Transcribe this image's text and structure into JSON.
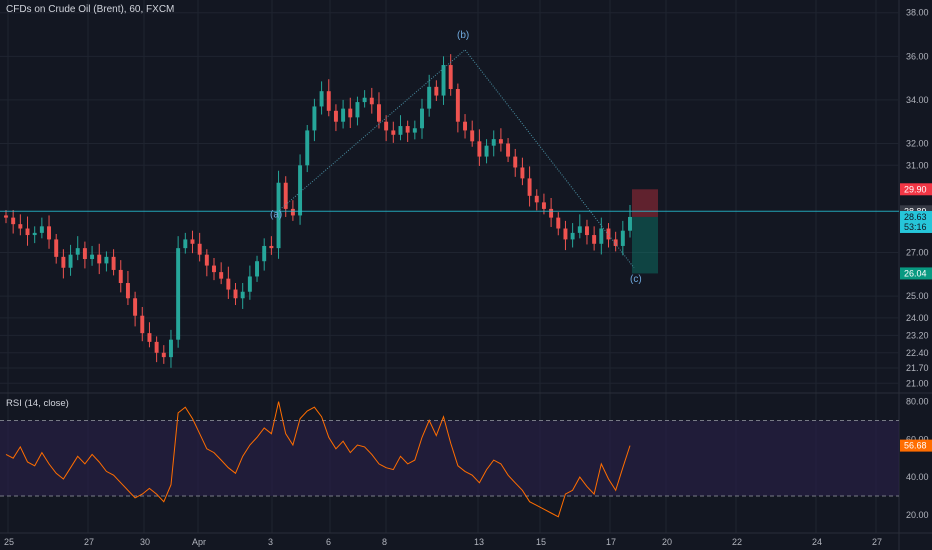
{
  "header": {
    "title": "CFDs on Crude Oil (Brent), 60, FXCM"
  },
  "rsi_header": {
    "title": "RSI (14, close)"
  },
  "colors": {
    "background": "#131722",
    "up": "#26a69a",
    "down": "#ef5350",
    "grid": "#1f2430",
    "wave": "#4a90a4",
    "rsi_line": "#ff6d00",
    "rsi_band": "#2a1f4a",
    "price_tag": "#26c6da",
    "stop_tag": "#f23645",
    "target_tag": "#089981"
  },
  "chart_data": [
    {
      "type": "candlestick",
      "title": "CFDs on Crude Oil (Brent), 60, FXCM",
      "x_ticks": [
        "25",
        "27",
        "30",
        "Apr",
        "3",
        "6",
        "8",
        "13",
        "15",
        "17",
        "20",
        "22",
        "24",
        "27"
      ],
      "y_ticks": [
        "38.00",
        "36.00",
        "34.00",
        "32.00",
        "31.00",
        "29.90",
        "28.89",
        "28.63",
        "27.00",
        "26.04",
        "25.00",
        "24.00",
        "23.20",
        "22.40",
        "21.70",
        "21.00"
      ],
      "ylim": [
        20.6,
        38.4
      ],
      "current_price": 28.63,
      "countdown": "53:16",
      "horizontal_line": 28.89,
      "stop_price": 29.9,
      "target_price": 26.04,
      "wave_points": [
        {
          "label": "(a)",
          "x": "3",
          "y": 28.89
        },
        {
          "label": "(b)",
          "x": "12",
          "y": 36.3
        },
        {
          "label": "(c)",
          "x": "17",
          "y": 26.3
        }
      ],
      "series": [
        {
          "values": [
            28.6,
            28.3,
            28.1,
            27.8,
            27.9,
            28.2,
            27.6,
            26.8,
            26.3,
            26.9,
            27.2,
            26.7,
            26.9,
            26.5,
            26.8,
            26.2,
            25.6,
            24.9,
            24.1,
            23.3,
            22.9,
            22.4,
            22.2,
            23.0,
            27.2,
            27.6,
            27.4,
            26.9,
            26.4,
            26.1,
            25.8,
            25.3,
            24.9,
            25.2,
            25.9,
            26.6,
            27.3,
            27.2,
            30.2,
            29.0,
            28.7,
            31.0,
            32.6,
            33.7,
            34.4,
            33.5,
            33.0,
            33.6,
            33.2,
            33.9,
            34.1,
            33.8,
            33.0,
            32.6,
            32.4,
            32.8,
            32.5,
            32.7,
            33.6,
            34.6,
            34.2,
            35.6,
            34.5,
            33.0,
            32.6,
            32.1,
            31.4,
            31.9,
            32.2,
            32.0,
            31.4,
            30.9,
            30.4,
            29.6,
            29.3,
            29.0,
            28.6,
            28.1,
            27.6,
            27.9,
            28.2,
            27.8,
            27.4,
            28.1,
            27.6,
            27.3,
            28.0,
            28.63
          ]
        }
      ]
    },
    {
      "type": "line",
      "title": "RSI (14, close)",
      "y_ticks": [
        "80.00",
        "60.00",
        "56.68",
        "40.00",
        "20.00"
      ],
      "ylim": [
        12,
        84
      ],
      "bands": [
        30,
        70
      ],
      "current_value": 56.68,
      "series": [
        {
          "values": [
            52,
            50,
            56,
            48,
            46,
            53,
            47,
            42,
            39,
            45,
            51,
            47,
            52,
            48,
            43,
            41,
            37,
            33,
            29,
            31,
            34,
            31,
            27,
            36,
            74,
            77,
            71,
            63,
            55,
            53,
            49,
            45,
            42,
            51,
            57,
            61,
            66,
            63,
            80,
            63,
            57,
            71,
            75,
            77,
            72,
            61,
            55,
            59,
            53,
            57,
            56,
            52,
            47,
            45,
            44,
            51,
            47,
            49,
            61,
            70,
            62,
            72,
            58,
            46,
            43,
            41,
            37,
            44,
            49,
            47,
            41,
            37,
            33,
            27,
            25,
            23,
            21,
            19,
            31,
            33,
            40,
            35,
            31,
            47,
            39,
            33,
            45,
            56.68
          ]
        }
      ]
    }
  ]
}
